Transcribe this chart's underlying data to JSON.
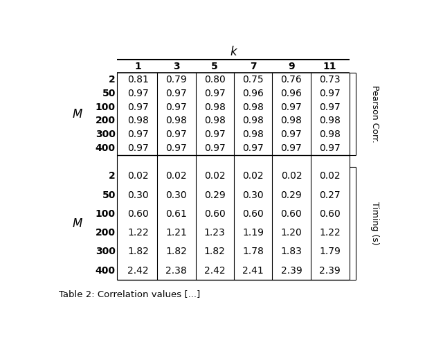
{
  "k_values": [
    "1",
    "3",
    "5",
    "7",
    "9",
    "11"
  ],
  "M_values": [
    "2",
    "50",
    "100",
    "200",
    "300",
    "400"
  ],
  "pearson_data": [
    [
      "0.81",
      "0.79",
      "0.80",
      "0.75",
      "0.76",
      "0.73"
    ],
    [
      "0.97",
      "0.97",
      "0.97",
      "0.96",
      "0.96",
      "0.97"
    ],
    [
      "0.97",
      "0.97",
      "0.98",
      "0.98",
      "0.97",
      "0.97"
    ],
    [
      "0.98",
      "0.98",
      "0.98",
      "0.98",
      "0.98",
      "0.98"
    ],
    [
      "0.97",
      "0.97",
      "0.97",
      "0.98",
      "0.97",
      "0.98"
    ],
    [
      "0.97",
      "0.97",
      "0.97",
      "0.97",
      "0.97",
      "0.97"
    ]
  ],
  "timing_data": [
    [
      "0.02",
      "0.02",
      "0.02",
      "0.02",
      "0.02",
      "0.02"
    ],
    [
      "0.30",
      "0.30",
      "0.29",
      "0.30",
      "0.29",
      "0.27"
    ],
    [
      "0.60",
      "0.61",
      "0.60",
      "0.60",
      "0.60",
      "0.60"
    ],
    [
      "1.22",
      "1.21",
      "1.23",
      "1.19",
      "1.20",
      "1.22"
    ],
    [
      "1.82",
      "1.82",
      "1.82",
      "1.78",
      "1.83",
      "1.79"
    ],
    [
      "2.42",
      "2.38",
      "2.42",
      "2.41",
      "2.39",
      "2.39"
    ]
  ],
  "caption": "Table 2: Correlation values [...]",
  "bg_color": "#ffffff",
  "text_color": "#000000",
  "fontsize_data": 10,
  "fontsize_header": 10,
  "fontsize_label": 11
}
